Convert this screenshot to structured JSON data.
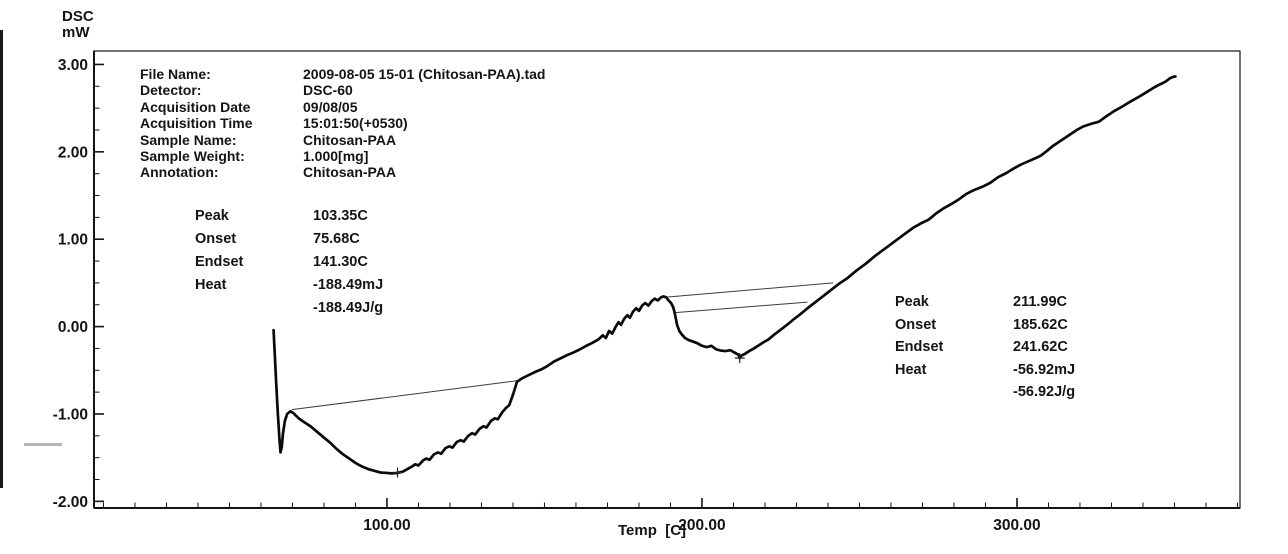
{
  "y_axis_unit": {
    "line1": "DSC",
    "line2": "mW"
  },
  "metadata": {
    "rows": [
      {
        "label": "File Name:",
        "value": "2009-08-05 15-01 (Chitosan-PAA).tad"
      },
      {
        "label": "Detector:",
        "value": "DSC-60"
      },
      {
        "label": "Acquisition Date",
        "value": "09/08/05"
      },
      {
        "label": "Acquisition Time",
        "value": "15:01:50(+0530)"
      },
      {
        "label": "Sample Name:",
        "value": "Chitosan-PAA"
      },
      {
        "label": "Sample Weight:",
        "value": "1.000[mg]"
      },
      {
        "label": "Annotation:",
        "value": "Chitosan-PAA"
      }
    ]
  },
  "peak_blocks": [
    {
      "rows": [
        {
          "label": "Peak",
          "value": "103.35C"
        },
        {
          "label": "Onset",
          "value": "75.68C"
        },
        {
          "label": "Endset",
          "value": "141.30C"
        },
        {
          "label": "Heat",
          "value": "-188.49mJ"
        },
        {
          "label": "",
          "value": "-188.49J/g"
        }
      ]
    },
    {
      "rows": [
        {
          "label": "Peak",
          "value": "211.99C"
        },
        {
          "label": "Onset",
          "value": "185.62C"
        },
        {
          "label": "Endset",
          "value": "241.62C"
        },
        {
          "label": "Heat",
          "value": "-56.92mJ"
        },
        {
          "label": "",
          "value": "-56.92J/g"
        }
      ]
    }
  ],
  "chart_data": {
    "type": "line",
    "title": "",
    "xlabel": "Temp  [C]",
    "ylabel": "DSC mW",
    "xlim": [
      7.0,
      370.8
    ],
    "ylim": [
      -2.076,
      3.154
    ],
    "grid": false,
    "x_ticks": [
      {
        "value": 100,
        "label": "100.00"
      },
      {
        "value": 200,
        "label": "200.00"
      },
      {
        "value": 300,
        "label": "300.00"
      }
    ],
    "y_ticks": [
      {
        "value": 3,
        "label": "3.00"
      },
      {
        "value": 2,
        "label": "2.00"
      },
      {
        "value": 1,
        "label": "1.00"
      },
      {
        "value": 0,
        "label": "0.00"
      },
      {
        "value": -1,
        "label": "-1.00"
      },
      {
        "value": -2,
        "label": "-2.00"
      }
    ],
    "x_minor_step": 10,
    "y_minor_step": 0.25,
    "colors": {
      "curve": "#0a0a0a",
      "baseline": "#3c3c3c",
      "axis": "#141414"
    },
    "peak_markers": [
      {
        "temp": 103.35,
        "mw": -1.67
      },
      {
        "temp": 211.99,
        "mw": -0.36
      }
    ],
    "series": [
      {
        "name": "DSC curve (Chitosan-PAA)",
        "role": "main",
        "points": [
          [
            64.0,
            -0.04
          ],
          [
            64.3,
            -0.25
          ],
          [
            64.8,
            -0.62
          ],
          [
            65.4,
            -1.02
          ],
          [
            65.9,
            -1.3
          ],
          [
            66.2,
            -1.44
          ],
          [
            66.6,
            -1.38
          ],
          [
            67.0,
            -1.22
          ],
          [
            67.6,
            -1.08
          ],
          [
            68.3,
            -1.0
          ],
          [
            69.3,
            -0.97
          ],
          [
            70.3,
            -0.99
          ],
          [
            72.0,
            -1.05
          ],
          [
            74.0,
            -1.1
          ],
          [
            75.7,
            -1.14
          ],
          [
            78.0,
            -1.21
          ],
          [
            80.0,
            -1.27
          ],
          [
            82.0,
            -1.33
          ],
          [
            84.0,
            -1.4
          ],
          [
            86.0,
            -1.46
          ],
          [
            88.0,
            -1.51
          ],
          [
            90.0,
            -1.56
          ],
          [
            92.0,
            -1.6
          ],
          [
            94.0,
            -1.63
          ],
          [
            96.0,
            -1.65
          ],
          [
            98.0,
            -1.67
          ],
          [
            100.0,
            -1.675
          ],
          [
            101.5,
            -1.68
          ],
          [
            103.3,
            -1.675
          ],
          [
            105.0,
            -1.66
          ],
          [
            106.5,
            -1.63
          ],
          [
            108.0,
            -1.6
          ],
          [
            109.0,
            -1.575
          ],
          [
            110.0,
            -1.59
          ],
          [
            111.5,
            -1.53
          ],
          [
            112.5,
            -1.51
          ],
          [
            113.5,
            -1.525
          ],
          [
            115.0,
            -1.46
          ],
          [
            116.2,
            -1.44
          ],
          [
            117.2,
            -1.455
          ],
          [
            118.6,
            -1.39
          ],
          [
            119.8,
            -1.37
          ],
          [
            120.8,
            -1.385
          ],
          [
            122.2,
            -1.32
          ],
          [
            123.4,
            -1.3
          ],
          [
            124.4,
            -1.315
          ],
          [
            125.8,
            -1.25
          ],
          [
            127.0,
            -1.22
          ],
          [
            128.0,
            -1.235
          ],
          [
            129.4,
            -1.17
          ],
          [
            130.6,
            -1.14
          ],
          [
            131.6,
            -1.155
          ],
          [
            133.0,
            -1.08
          ],
          [
            134.2,
            -1.05
          ],
          [
            135.2,
            -1.06
          ],
          [
            136.6,
            -0.98
          ],
          [
            137.8,
            -0.93
          ],
          [
            138.8,
            -0.9
          ],
          [
            140.0,
            -0.78
          ],
          [
            141.3,
            -0.63
          ],
          [
            143.0,
            -0.59
          ],
          [
            145.0,
            -0.555
          ],
          [
            147.0,
            -0.52
          ],
          [
            149.0,
            -0.49
          ],
          [
            151.0,
            -0.45
          ],
          [
            153.0,
            -0.4
          ],
          [
            155.0,
            -0.365
          ],
          [
            157.0,
            -0.33
          ],
          [
            159.0,
            -0.3
          ],
          [
            161.0,
            -0.265
          ],
          [
            163.0,
            -0.225
          ],
          [
            165.0,
            -0.19
          ],
          [
            167.0,
            -0.15
          ],
          [
            168.5,
            -0.1
          ],
          [
            169.5,
            -0.13
          ],
          [
            170.5,
            -0.05
          ],
          [
            171.5,
            -0.08
          ],
          [
            172.5,
            -0.01
          ],
          [
            173.5,
            0.05
          ],
          [
            174.3,
            0.02
          ],
          [
            175.3,
            0.09
          ],
          [
            176.3,
            0.13
          ],
          [
            177.1,
            0.1
          ],
          [
            178.1,
            0.17
          ],
          [
            179.1,
            0.21
          ],
          [
            180.0,
            0.18
          ],
          [
            181.0,
            0.24
          ],
          [
            182.0,
            0.27
          ],
          [
            183.0,
            0.24
          ],
          [
            184.0,
            0.29
          ],
          [
            185.0,
            0.32
          ],
          [
            186.0,
            0.3
          ],
          [
            187.0,
            0.335
          ],
          [
            187.8,
            0.345
          ],
          [
            188.6,
            0.335
          ],
          [
            189.4,
            0.3
          ],
          [
            190.2,
            0.27
          ],
          [
            190.9,
            0.22
          ],
          [
            191.5,
            0.13
          ],
          [
            192.1,
            0.02
          ],
          [
            192.8,
            -0.05
          ],
          [
            193.6,
            -0.09
          ],
          [
            194.6,
            -0.13
          ],
          [
            195.8,
            -0.155
          ],
          [
            197.0,
            -0.17
          ],
          [
            198.5,
            -0.19
          ],
          [
            200.0,
            -0.22
          ],
          [
            201.5,
            -0.235
          ],
          [
            203.0,
            -0.22
          ],
          [
            204.5,
            -0.26
          ],
          [
            206.0,
            -0.275
          ],
          [
            207.5,
            -0.28
          ],
          [
            209.0,
            -0.27
          ],
          [
            210.5,
            -0.3
          ],
          [
            211.5,
            -0.32
          ],
          [
            212.0,
            -0.36
          ],
          [
            212.6,
            -0.33
          ],
          [
            213.5,
            -0.315
          ],
          [
            215.0,
            -0.28
          ],
          [
            216.5,
            -0.25
          ],
          [
            218.0,
            -0.215
          ],
          [
            219.5,
            -0.18
          ],
          [
            221.0,
            -0.15
          ],
          [
            223.0,
            -0.09
          ],
          [
            225.0,
            -0.035
          ],
          [
            227.0,
            0.02
          ],
          [
            229.0,
            0.08
          ],
          [
            231.0,
            0.135
          ],
          [
            233.5,
            0.21
          ],
          [
            236.0,
            0.28
          ],
          [
            238.5,
            0.35
          ],
          [
            241.0,
            0.42
          ],
          [
            243.5,
            0.49
          ],
          [
            246.0,
            0.55
          ],
          [
            249.0,
            0.64
          ],
          [
            252.0,
            0.72
          ],
          [
            255.0,
            0.81
          ],
          [
            258.0,
            0.89
          ],
          [
            261.0,
            0.97
          ],
          [
            264.0,
            1.05
          ],
          [
            267.0,
            1.13
          ],
          [
            270.0,
            1.19
          ],
          [
            272.0,
            1.225
          ],
          [
            274.5,
            1.3
          ],
          [
            277.0,
            1.36
          ],
          [
            279.5,
            1.41
          ],
          [
            281.5,
            1.455
          ],
          [
            284.0,
            1.52
          ],
          [
            286.5,
            1.565
          ],
          [
            289.0,
            1.6
          ],
          [
            291.5,
            1.645
          ],
          [
            294.0,
            1.71
          ],
          [
            296.5,
            1.755
          ],
          [
            299.0,
            1.81
          ],
          [
            301.0,
            1.85
          ],
          [
            303.5,
            1.89
          ],
          [
            306.0,
            1.93
          ],
          [
            307.5,
            1.955
          ],
          [
            309.5,
            2.01
          ],
          [
            311.5,
            2.07
          ],
          [
            314.0,
            2.13
          ],
          [
            316.5,
            2.19
          ],
          [
            319.0,
            2.25
          ],
          [
            321.0,
            2.29
          ],
          [
            323.5,
            2.32
          ],
          [
            326.0,
            2.345
          ],
          [
            328.5,
            2.41
          ],
          [
            331.0,
            2.47
          ],
          [
            333.5,
            2.52
          ],
          [
            336.0,
            2.575
          ],
          [
            338.5,
            2.625
          ],
          [
            341.0,
            2.68
          ],
          [
            343.0,
            2.725
          ],
          [
            345.0,
            2.765
          ],
          [
            347.0,
            2.8
          ],
          [
            348.7,
            2.845
          ],
          [
            349.8,
            2.86
          ],
          [
            350.3,
            2.862
          ]
        ]
      },
      {
        "name": "baseline peak 1",
        "role": "baseline",
        "points": [
          [
            69.8,
            -0.95
          ],
          [
            141.3,
            -0.62
          ]
        ]
      },
      {
        "name": "baseline peak 2 upper",
        "role": "baseline",
        "points": [
          [
            187.8,
            0.335
          ],
          [
            241.6,
            0.5
          ]
        ]
      },
      {
        "name": "baseline peak 2 lower",
        "role": "baseline",
        "points": [
          [
            191.5,
            0.16
          ],
          [
            233.5,
            0.28
          ]
        ]
      }
    ]
  }
}
